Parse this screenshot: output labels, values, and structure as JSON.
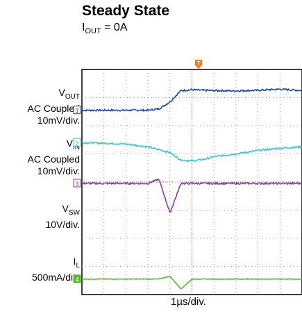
{
  "title": "Steady State",
  "subtitle": {
    "prefix": "I",
    "sub": "OUT",
    "suffix": " = 0A"
  },
  "timebase": "1µs/div.",
  "chart_data": {
    "type": "line",
    "title": "Steady State",
    "subtitle": "IOUT = 0A",
    "xlabel": "1µs/div.",
    "x_divisions": 10,
    "y_divisions": 8,
    "grid": true,
    "trigger_marker": "T",
    "x": [
      0,
      1,
      2,
      3,
      3.5,
      4,
      4.5,
      5,
      5.5,
      6,
      7,
      8,
      9,
      10
    ],
    "series": [
      {
        "name": "VOUT",
        "marker": "1",
        "color": "#1f4e9e",
        "label_lines": [
          "AC Coupled",
          "10mV/div."
        ],
        "y": [
          6.55,
          6.55,
          6.55,
          6.55,
          6.6,
          6.85,
          7.25,
          7.28,
          7.26,
          7.25,
          7.24,
          7.26,
          7.3,
          7.25
        ]
      },
      {
        "name": "VIN",
        "marker": "2",
        "color": "#46c4cf",
        "label_lines": [
          "AC Coupled",
          "10mV/div."
        ],
        "y": [
          5.4,
          5.38,
          5.35,
          5.25,
          5.15,
          5.05,
          4.78,
          4.75,
          4.8,
          4.9,
          5.0,
          5.12,
          5.2,
          5.25
        ]
      },
      {
        "name": "VSW",
        "marker": "3",
        "color": "#8b3f96",
        "label_lines": [
          "10V/div."
        ],
        "y": [
          3.95,
          3.95,
          3.95,
          3.95,
          4.1,
          2.9,
          3.95,
          3.95,
          3.95,
          3.95,
          3.95,
          3.95,
          3.95,
          3.95
        ]
      },
      {
        "name": "IL",
        "marker": "4",
        "color": "#5cb531",
        "label_lines": [
          "500mA/div."
        ],
        "y": [
          0.55,
          0.55,
          0.55,
          0.55,
          0.55,
          0.65,
          0.2,
          0.55,
          0.55,
          0.55,
          0.55,
          0.55,
          0.55,
          0.55
        ]
      }
    ]
  }
}
